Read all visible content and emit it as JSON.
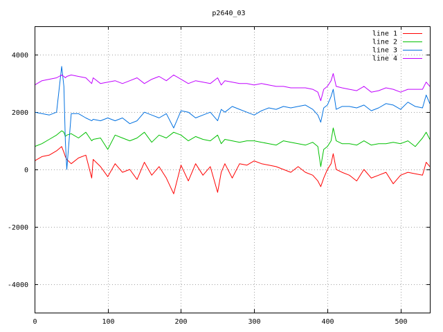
{
  "chart_data": {
    "type": "line",
    "title": "p2640_03",
    "xlabel": "",
    "ylabel": "",
    "xlim": [
      0,
      540
    ],
    "ylim": [
      -5000,
      5000
    ],
    "xticks": [
      0,
      100,
      200,
      300,
      400,
      500
    ],
    "yticks": [
      -4000,
      -2000,
      0,
      2000,
      4000
    ],
    "grid": true,
    "legend_position": "top-right",
    "x": [
      0,
      10,
      20,
      30,
      37,
      40,
      42,
      44,
      50,
      60,
      70,
      78,
      80,
      90,
      100,
      110,
      120,
      130,
      140,
      150,
      160,
      170,
      180,
      190,
      200,
      210,
      220,
      230,
      240,
      250,
      255,
      260,
      270,
      280,
      290,
      300,
      310,
      320,
      330,
      340,
      350,
      360,
      370,
      380,
      387,
      391,
      395,
      400,
      405,
      408,
      412,
      420,
      430,
      440,
      450,
      460,
      470,
      480,
      490,
      500,
      510,
      520,
      530,
      535,
      540
    ],
    "series": [
      {
        "name": "line 1",
        "color": "#ff0000",
        "values": [
          300,
          450,
          500,
          650,
          800,
          600,
          450,
          350,
          200,
          400,
          500,
          -300,
          350,
          100,
          -250,
          200,
          -100,
          0,
          -350,
          250,
          -200,
          100,
          -300,
          -850,
          150,
          -400,
          200,
          -200,
          100,
          -800,
          -100,
          200,
          -300,
          200,
          150,
          300,
          200,
          150,
          100,
          0,
          -100,
          100,
          -100,
          -200,
          -400,
          -600,
          -300,
          0,
          200,
          550,
          0,
          -100,
          -200,
          -400,
          0,
          -300,
          -200,
          -100,
          -500,
          -200,
          -100,
          -150,
          -200,
          250,
          100
        ]
      },
      {
        "name": "line 2",
        "color": "#00c000",
        "values": [
          800,
          900,
          1050,
          1200,
          1350,
          1300,
          1150,
          1200,
          1250,
          1100,
          1300,
          1000,
          1050,
          1100,
          700,
          1200,
          1100,
          1000,
          1100,
          1300,
          950,
          1200,
          1100,
          1300,
          1200,
          1000,
          1150,
          1050,
          1000,
          1200,
          900,
          1050,
          1000,
          950,
          1000,
          1000,
          950,
          900,
          850,
          1000,
          950,
          900,
          850,
          950,
          800,
          100,
          700,
          800,
          1000,
          1450,
          1000,
          900,
          900,
          850,
          1000,
          850,
          900,
          900,
          950,
          900,
          1000,
          800,
          1100,
          1300,
          1050
        ]
      },
      {
        "name": "line 3",
        "color": "#0070e0",
        "values": [
          2000,
          1950,
          1900,
          2000,
          3600,
          2900,
          1000,
          0,
          1950,
          1950,
          1800,
          1700,
          1750,
          1700,
          1800,
          1700,
          1800,
          1600,
          1700,
          2000,
          1900,
          1800,
          1950,
          1450,
          2050,
          2000,
          1800,
          1900,
          2000,
          1700,
          2100,
          2000,
          2200,
          2100,
          2000,
          1900,
          2050,
          2150,
          2100,
          2200,
          2150,
          2200,
          2250,
          2100,
          1900,
          1650,
          2150,
          2250,
          2550,
          2800,
          2100,
          2200,
          2200,
          2150,
          2250,
          2050,
          2150,
          2300,
          2250,
          2100,
          2350,
          2200,
          2150,
          2600,
          2300
        ]
      },
      {
        "name": "line 4",
        "color": "#c000ff",
        "values": [
          2950,
          3100,
          3150,
          3200,
          3300,
          3250,
          3200,
          3250,
          3300,
          3250,
          3200,
          3000,
          3200,
          3000,
          3050,
          3100,
          3000,
          3100,
          3200,
          3000,
          3150,
          3250,
          3100,
          3300,
          3150,
          3000,
          3100,
          3050,
          3000,
          3200,
          2950,
          3100,
          3050,
          3000,
          3000,
          2950,
          3000,
          2950,
          2900,
          2900,
          2850,
          2850,
          2850,
          2800,
          2700,
          2400,
          2800,
          2900,
          3100,
          3350,
          2900,
          2850,
          2800,
          2750,
          2900,
          2700,
          2750,
          2850,
          2800,
          2700,
          2800,
          2800,
          2800,
          3050,
          2900
        ]
      }
    ]
  }
}
